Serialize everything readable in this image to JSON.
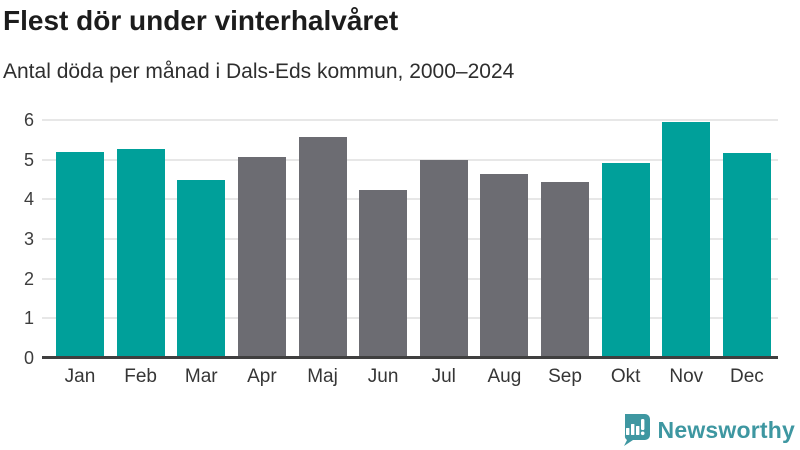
{
  "header": {
    "title": "Flest dör under vinterhalvåret",
    "subtitle": "Antal döda per månad i Dals-Eds kommun, 2000–2024"
  },
  "chart_data": {
    "type": "bar",
    "title": "Flest dör under vinterhalvåret",
    "subtitle": "Antal döda per månad i Dals-Eds kommun, 2000–2024",
    "categories": [
      "Jan",
      "Feb",
      "Mar",
      "Apr",
      "Maj",
      "Jun",
      "Jul",
      "Aug",
      "Sep",
      "Okt",
      "Nov",
      "Dec"
    ],
    "values": [
      5.2,
      5.28,
      4.48,
      5.08,
      5.56,
      4.24,
      5.0,
      4.64,
      4.44,
      4.92,
      5.96,
      5.16
    ],
    "bar_color_roles": [
      "highlight",
      "highlight",
      "highlight",
      "muted",
      "muted",
      "muted",
      "muted",
      "muted",
      "muted",
      "highlight",
      "highlight",
      "highlight"
    ],
    "xlabel": "",
    "ylabel": "",
    "ylim": [
      0,
      6
    ],
    "yticks": [
      0,
      1,
      2,
      3,
      4,
      5,
      6
    ],
    "grid": true,
    "legend": "none",
    "colors": {
      "highlight": "#00A09A",
      "muted": "#6C6C72",
      "gridline": "#e7e7e7",
      "axis": "#3f3f3f"
    }
  },
  "footer": {
    "brand": "Newsworthy",
    "brand_color": "#3E97A1",
    "logo_icon": "newsworthy-speech-bubble-bar-chart"
  }
}
